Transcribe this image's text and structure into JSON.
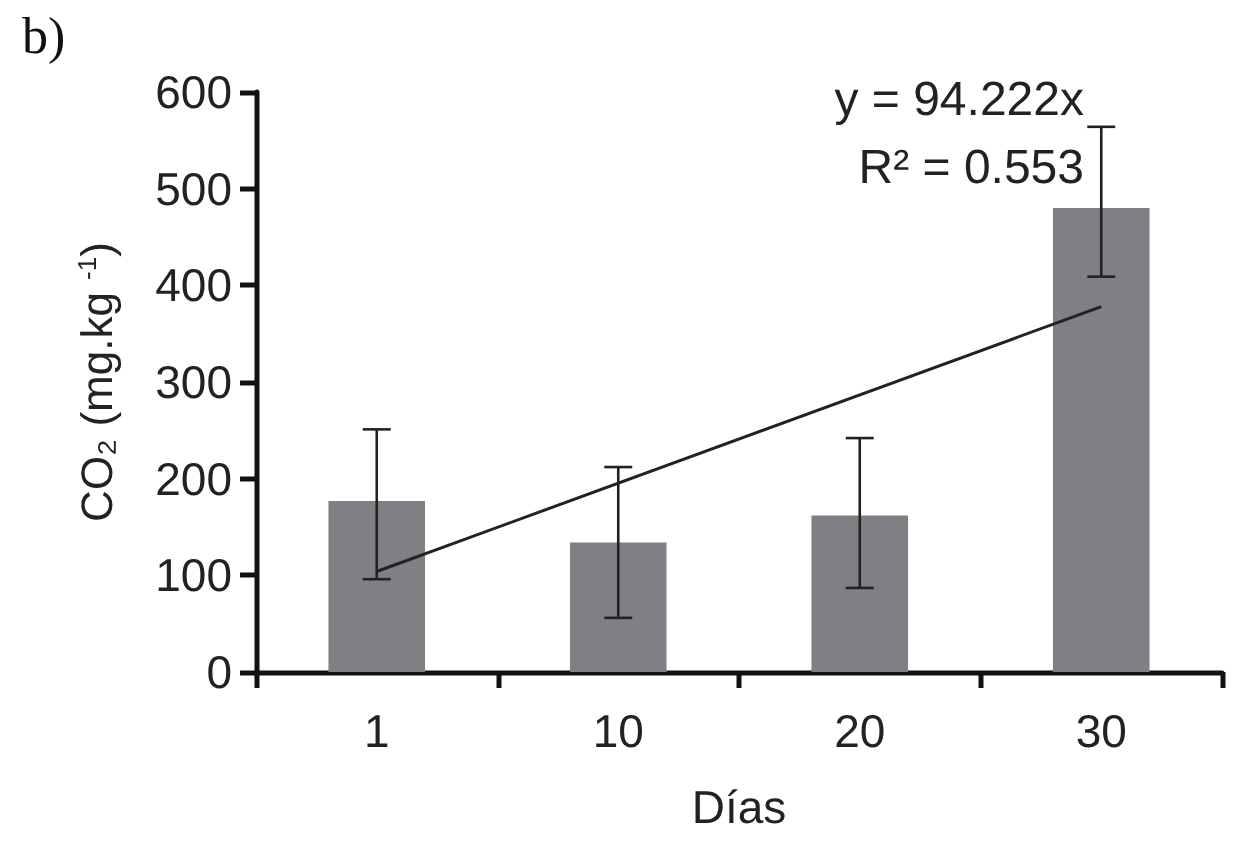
{
  "chart_data": {
    "type": "bar",
    "title": "b)",
    "xlabel": "Días",
    "ylabel": "CO₂ (mg.kg $^{-1}$)",
    "categories": [
      "1",
      "10",
      "20",
      "30"
    ],
    "series": [
      {
        "color": "#808084",
        "values": [
          177,
          134,
          162,
          480
        ],
        "errors": [
          [
            96,
            251
          ],
          [
            56,
            212
          ],
          [
            87,
            242
          ],
          [
            409,
            564
          ]
        ]
      },
      {
        "type": "line",
        "color": "#222222",
        "x": [
          "1",
          "30"
        ],
        "values": [
          104,
          378
        ],
        "marker": "none"
      }
    ],
    "ylim": [
      0,
      600
    ],
    "yticks": [
      0,
      100,
      200,
      300,
      400,
      500,
      600
    ],
    "grid": false,
    "annotations": [
      "y = 94.222x",
      "R² = 0.553"
    ]
  }
}
